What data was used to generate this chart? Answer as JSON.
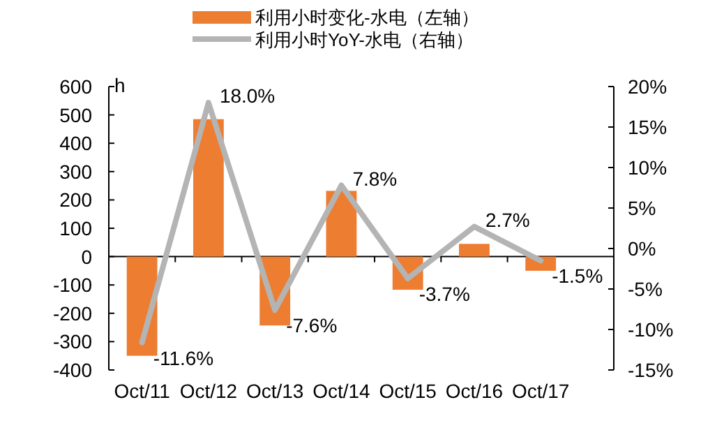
{
  "chart_data": {
    "type": "bar",
    "categories": [
      "Oct/11",
      "Oct/12",
      "Oct/13",
      "Oct/14",
      "Oct/15",
      "Oct/16",
      "Oct/17"
    ],
    "ylabel": "h",
    "ylim": [
      -400,
      600
    ],
    "yticks": [
      -400,
      -300,
      -200,
      -100,
      0,
      100,
      200,
      300,
      400,
      500,
      600
    ],
    "y2lim": [
      -15,
      20
    ],
    "y2ticks": [
      {
        "value": -15,
        "label": "-15%"
      },
      {
        "value": -10,
        "label": "-10%"
      },
      {
        "value": -5,
        "label": "-5%"
      },
      {
        "value": 0,
        "label": "0%"
      },
      {
        "value": 5,
        "label": "5%"
      },
      {
        "value": 10,
        "label": "10%"
      },
      {
        "value": 15,
        "label": "15%"
      },
      {
        "value": 20,
        "label": "20%"
      }
    ],
    "legend": "top",
    "series": [
      {
        "name": "利用小时变化-水电（左轴）",
        "color": "#ed7d31",
        "values": [
          -350,
          485,
          -243,
          232,
          -117,
          45,
          -50
        ]
      },
      {
        "name": "利用小时YoY-水电（右轴）",
        "type": "line",
        "axis": "y2",
        "color": "#b4b4b4",
        "values": [
          -11.6,
          18.0,
          -7.6,
          7.8,
          -3.7,
          2.7,
          -1.5
        ],
        "value_labels": [
          "-11.6%",
          "18.0%",
          "-7.6%",
          "7.8%",
          "-3.7%",
          "2.7%",
          "-1.5%"
        ]
      }
    ]
  }
}
